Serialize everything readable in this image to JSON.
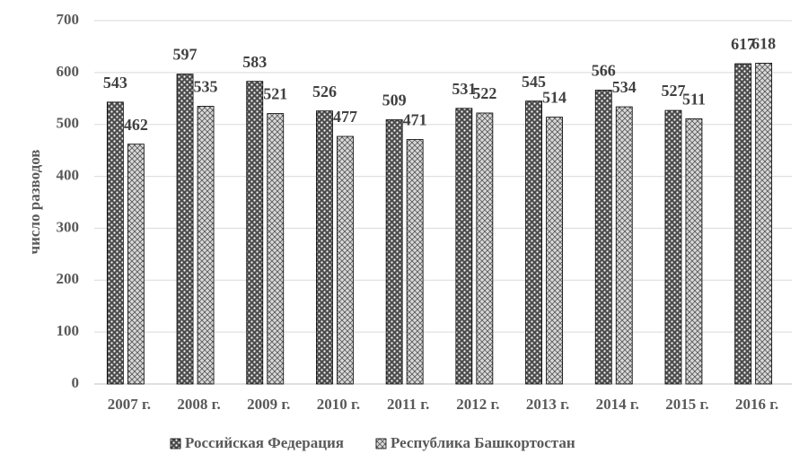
{
  "chart_data": {
    "type": "bar",
    "y_label": "число разводов",
    "categories": [
      "2007 г.",
      "2008 г.",
      "2009 г.",
      "2010 г.",
      "2011 г.",
      "2012 г.",
      "2013 г.",
      "2014 г.",
      "2015 г.",
      "2016 г."
    ],
    "series": [
      {
        "name": "Российская Федерация",
        "color": "#4d4d4d",
        "values": [
          543,
          597,
          583,
          526,
          509,
          531,
          545,
          566,
          527,
          617
        ]
      },
      {
        "name": "Республика Башкортостан",
        "color": "#d9d9d9",
        "values": [
          462,
          535,
          521,
          477,
          471,
          522,
          514,
          534,
          511,
          618
        ]
      }
    ],
    "ylim": [
      0,
      700
    ],
    "yticks": [
      0,
      100,
      200,
      300,
      400,
      500,
      600,
      700
    ],
    "grid": true
  }
}
